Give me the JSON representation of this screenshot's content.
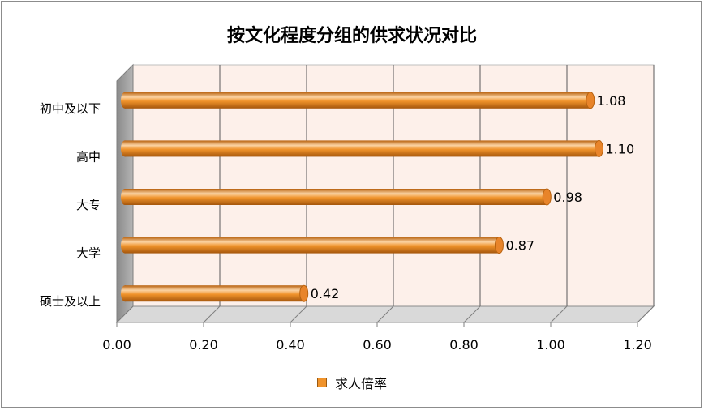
{
  "chart_data": {
    "type": "bar",
    "orientation": "horizontal",
    "title": "按文化程度分组的供求状况对比",
    "categories": [
      "初中及以下",
      "高中",
      "大专",
      "大学",
      "硕士及以上"
    ],
    "series": [
      {
        "name": "求人倍率",
        "values": [
          1.08,
          1.1,
          0.98,
          0.87,
          0.42
        ]
      }
    ],
    "data_labels": [
      "1.08",
      "1.10",
      "0.98",
      "0.87",
      "0.42"
    ],
    "x_ticks": [
      "0.00",
      "0.20",
      "0.40",
      "0.60",
      "0.80",
      "1.00",
      "1.20"
    ],
    "xlim": [
      0,
      1.2
    ],
    "xlabel": "",
    "ylabel": "",
    "grid": true,
    "legend_position": "bottom",
    "colors": {
      "bar": "#f0932b",
      "bar_dark": "#b8620f",
      "bar_light": "#fbd3a3",
      "plot_back": "#fdf0ea",
      "gridline": "#595959"
    }
  }
}
